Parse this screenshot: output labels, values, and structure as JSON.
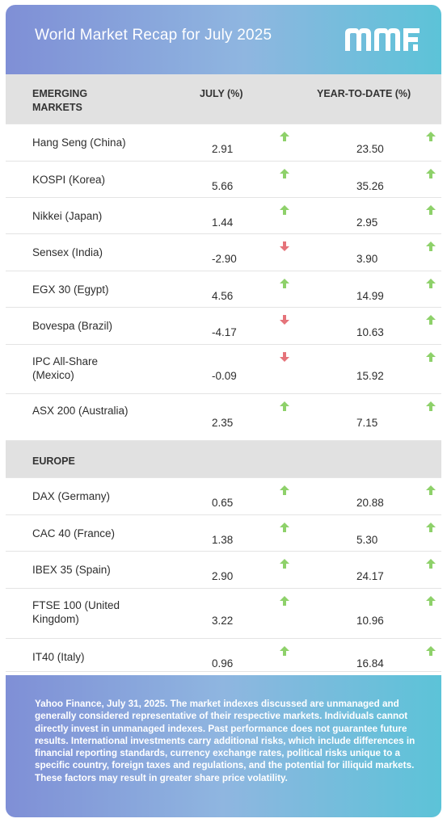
{
  "header": {
    "title": "World Market Recap for July 2025",
    "logo": "mm-logo"
  },
  "columns": {
    "section1_name": "EMERGING MARKETS",
    "july": "JULY (%)",
    "ytd": "YEAR-TO-DATE (%)"
  },
  "emerging": [
    {
      "name": "Hang Seng (China)",
      "july": "2.91",
      "july_dir": "up",
      "ytd": "23.50",
      "ytd_dir": "up"
    },
    {
      "name": "KOSPI (Korea)",
      "july": "5.66",
      "july_dir": "up",
      "ytd": "35.26",
      "ytd_dir": "up"
    },
    {
      "name": "Nikkei (Japan)",
      "july": "1.44",
      "july_dir": "up",
      "ytd": "2.95",
      "ytd_dir": "up"
    },
    {
      "name": "Sensex (India)",
      "july": "-2.90",
      "july_dir": "down",
      "ytd": "3.90",
      "ytd_dir": "up"
    },
    {
      "name": "EGX 30 (Egypt)",
      "july": "4.56",
      "july_dir": "up",
      "ytd": "14.99",
      "ytd_dir": "up"
    },
    {
      "name": "Bovespa (Brazil)",
      "july": "-4.17",
      "july_dir": "down",
      "ytd": "10.63",
      "ytd_dir": "up"
    },
    {
      "name": "IPC All-Share (Mexico)",
      "july": "-0.09",
      "july_dir": "down",
      "ytd": "15.92",
      "ytd_dir": "up"
    },
    {
      "name": "ASX 200 (Australia)",
      "july": "2.35",
      "july_dir": "up",
      "ytd": "7.15",
      "ytd_dir": "up"
    }
  ],
  "europe_label": "EUROPE",
  "europe": [
    {
      "name": "DAX (Germany)",
      "july": "0.65",
      "july_dir": "up",
      "ytd": "20.88",
      "ytd_dir": "up"
    },
    {
      "name": "CAC 40 (France)",
      "july": "1.38",
      "july_dir": "up",
      "ytd": "5.30",
      "ytd_dir": "up"
    },
    {
      "name": "IBEX 35 (Spain)",
      "july": "2.90",
      "july_dir": "up",
      "ytd": "24.17",
      "ytd_dir": "up"
    },
    {
      "name": "FTSE 100 (United Kingdom)",
      "july": "3.22",
      "july_dir": "up",
      "ytd": "10.96",
      "ytd_dir": "up"
    },
    {
      "name": "IT40 (Italy)",
      "july": "0.96",
      "july_dir": "up",
      "ytd": "16.84",
      "ytd_dir": "up"
    }
  ],
  "colors": {
    "up": "#8ed16a",
    "down": "#e5737a"
  },
  "footer": {
    "note": "Yahoo Finance, July 31, 2025. The market indexes discussed are unmanaged and generally considered representative of their respective markets. Individuals cannot directly invest in unmanaged indexes. Past performance does not guarantee future results. International investments carry additional risks, which include differences in financial reporting standards, currency exchange rates, political risks unique to a specific country, foreign taxes and regulations, and the potential for illiquid markets. These factors may result in greater share price volatility."
  }
}
